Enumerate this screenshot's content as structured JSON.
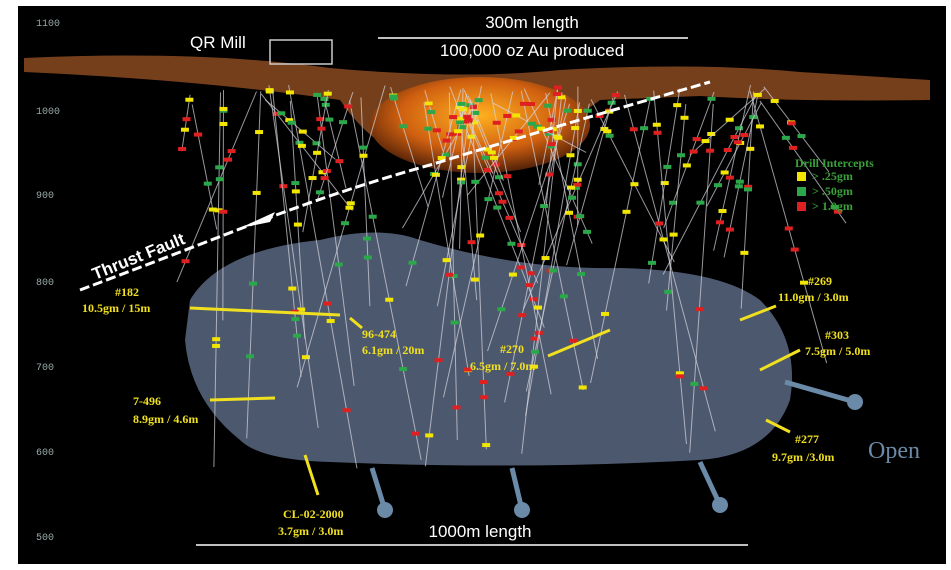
{
  "elevation_labels": [
    "1100",
    "1000",
    "900",
    "800",
    "700",
    "600",
    "500"
  ],
  "annotations": {
    "mill": "QR Mill",
    "top_length": "300m length",
    "production": "100,000 oz Au produced",
    "fault": "Thrust Fault",
    "bottom_length": "1000m length",
    "open": "Open"
  },
  "legend": {
    "title": "Drill Intercepts",
    "items": [
      {
        "label": "> .25gm",
        "color": "#f2e600"
      },
      {
        "label": "> .50gm",
        "color": "#2aa84a"
      },
      {
        "label": "> 1.0gm",
        "color": "#e02020"
      }
    ]
  },
  "intercepts": [
    {
      "hole": "#182",
      "grade": "10.5gm / 15m"
    },
    {
      "hole": "96-474",
      "grade": "6.1gm / 20m"
    },
    {
      "hole": "#270",
      "grade": "6.5gm / 7.0m"
    },
    {
      "hole": "7-496",
      "grade": "8.9gm / 4.6m"
    },
    {
      "hole": "CL-02-2000",
      "grade": "3.7gm / 3.0m"
    },
    {
      "hole": "#269",
      "grade": "11.0gm / 3.0m"
    },
    {
      "hole": "#303",
      "grade": "7.5gm / 5.0m"
    },
    {
      "hole": "#277",
      "grade": "9.7gm /3.0m"
    }
  ]
}
